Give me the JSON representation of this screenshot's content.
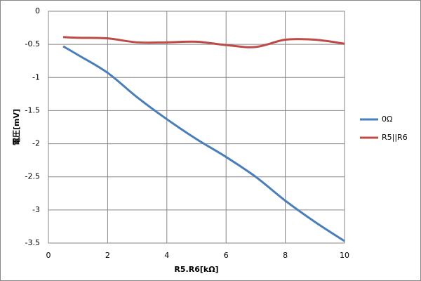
{
  "chart_data": {
    "type": "line",
    "x_label": "R5.R6[kΩ]",
    "y_label": "電圧[mV]",
    "x": [
      0.5,
      1,
      2,
      3,
      4,
      5,
      6,
      7,
      8,
      9,
      10
    ],
    "series": [
      {
        "name": "0Ω",
        "color": "#4a7ebb",
        "values": [
          -0.53,
          -0.66,
          -0.93,
          -1.3,
          -1.63,
          -1.93,
          -2.2,
          -2.5,
          -2.86,
          -3.18,
          -3.47
        ]
      },
      {
        "name": "R5||R6",
        "color": "#be4b48",
        "values": [
          -0.39,
          -0.4,
          -0.41,
          -0.47,
          -0.47,
          -0.46,
          -0.51,
          -0.54,
          -0.43,
          -0.43,
          -0.49
        ]
      }
    ],
    "xlim": [
      0,
      10
    ],
    "xticks": [
      0,
      2,
      4,
      6,
      8,
      10
    ],
    "ylim": [
      -3.5,
      0
    ],
    "yticks": [
      0,
      -0.5,
      -1,
      -1.5,
      -2,
      -2.5,
      -3,
      -3.5
    ],
    "grid": true,
    "legend": "right"
  }
}
